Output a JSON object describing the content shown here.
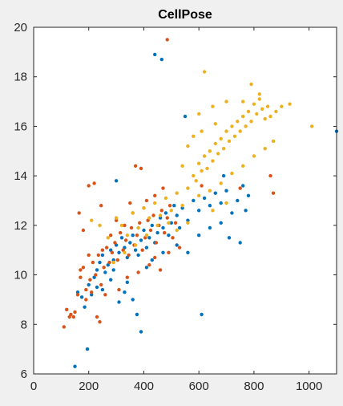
{
  "chart_data": {
    "type": "scatter",
    "title": "CellPose",
    "xlabel": "",
    "ylabel": "",
    "xlim": [
      0,
      1100
    ],
    "ylim": [
      6,
      20
    ],
    "xticks": [
      0,
      200,
      400,
      600,
      800,
      1000
    ],
    "yticks": [
      6,
      8,
      10,
      12,
      14,
      16,
      18,
      20
    ],
    "grid": false,
    "legend": "none",
    "colors": {
      "background": "#f0f0f0",
      "plot_area": "#ffffff",
      "axes": "#262626"
    },
    "series": [
      {
        "color": "#0072BD",
        "points": [
          [
            150,
            6.3
          ],
          [
            195,
            7.0
          ],
          [
            160,
            9.3
          ],
          [
            175,
            9.1
          ],
          [
            185,
            8.7
          ],
          [
            200,
            9.6
          ],
          [
            210,
            9.2
          ],
          [
            220,
            9.9
          ],
          [
            230,
            10.2
          ],
          [
            240,
            10.5
          ],
          [
            250,
            10.8
          ],
          [
            260,
            10.1
          ],
          [
            270,
            10.4
          ],
          [
            280,
            11.0
          ],
          [
            290,
            10.6
          ],
          [
            300,
            11.2
          ],
          [
            310,
            10.9
          ],
          [
            320,
            11.5
          ],
          [
            330,
            11.1
          ],
          [
            340,
            10.7
          ],
          [
            350,
            11.3
          ],
          [
            360,
            11.6
          ],
          [
            370,
            11.0
          ],
          [
            380,
            10.8
          ],
          [
            390,
            11.4
          ],
          [
            400,
            11.8
          ],
          [
            410,
            11.1
          ],
          [
            420,
            11.5
          ],
          [
            430,
            12.0
          ],
          [
            440,
            11.3
          ],
          [
            450,
            11.7
          ],
          [
            460,
            12.3
          ],
          [
            470,
            11.9
          ],
          [
            480,
            12.5
          ],
          [
            490,
            11.6
          ],
          [
            500,
            12.1
          ],
          [
            510,
            12.8
          ],
          [
            520,
            12.4
          ],
          [
            530,
            11.9
          ],
          [
            540,
            12.7
          ],
          [
            560,
            12.2
          ],
          [
            580,
            13.0
          ],
          [
            600,
            12.6
          ],
          [
            620,
            13.1
          ],
          [
            640,
            12.8
          ],
          [
            660,
            13.3
          ],
          [
            680,
            12.9
          ],
          [
            700,
            13.4
          ],
          [
            720,
            12.5
          ],
          [
            740,
            13.0
          ],
          [
            760,
            13.6
          ],
          [
            780,
            13.2
          ],
          [
            440,
            18.9
          ],
          [
            465,
            18.7
          ],
          [
            550,
            16.4
          ],
          [
            610,
            8.4
          ],
          [
            390,
            7.7
          ],
          [
            300,
            13.8
          ],
          [
            750,
            11.3
          ],
          [
            690,
            14.0
          ],
          [
            1100,
            15.8
          ],
          [
            375,
            8.4
          ],
          [
            330,
            9.3
          ],
          [
            310,
            8.9
          ],
          [
            280,
            9.8
          ],
          [
            340,
            9.7
          ],
          [
            360,
            9.0
          ],
          [
            410,
            10.3
          ],
          [
            430,
            10.6
          ],
          [
            470,
            10.9
          ],
          [
            520,
            11.2
          ],
          [
            560,
            10.9
          ],
          [
            600,
            11.6
          ],
          [
            640,
            11.9
          ],
          [
            680,
            12.1
          ],
          [
            710,
            11.5
          ],
          [
            770,
            12.6
          ],
          [
            290,
            10.2
          ],
          [
            250,
            9.4
          ],
          [
            230,
            9.5
          ]
        ]
      },
      {
        "color": "#D95319",
        "points": [
          [
            110,
            7.9
          ],
          [
            120,
            8.6
          ],
          [
            135,
            8.4
          ],
          [
            145,
            8.3
          ],
          [
            160,
            9.2
          ],
          [
            170,
            9.9
          ],
          [
            180,
            10.3
          ],
          [
            190,
            9.4
          ],
          [
            205,
            9.8
          ],
          [
            215,
            10.5
          ],
          [
            225,
            10.0
          ],
          [
            235,
            10.8
          ],
          [
            245,
            9.6
          ],
          [
            255,
            10.3
          ],
          [
            265,
            11.1
          ],
          [
            275,
            10.5
          ],
          [
            285,
            10.9
          ],
          [
            295,
            11.3
          ],
          [
            305,
            10.6
          ],
          [
            315,
            11.7
          ],
          [
            325,
            11.0
          ],
          [
            335,
            11.4
          ],
          [
            345,
            10.8
          ],
          [
            355,
            11.9
          ],
          [
            365,
            11.2
          ],
          [
            375,
            11.6
          ],
          [
            385,
            12.1
          ],
          [
            395,
            11.0
          ],
          [
            405,
            11.5
          ],
          [
            415,
            12.2
          ],
          [
            425,
            11.8
          ],
          [
            435,
            12.4
          ],
          [
            445,
            11.3
          ],
          [
            455,
            12.0
          ],
          [
            465,
            12.6
          ],
          [
            475,
            11.7
          ],
          [
            485,
            12.3
          ],
          [
            495,
            12.8
          ],
          [
            505,
            11.5
          ],
          [
            515,
            12.1
          ],
          [
            165,
            12.5
          ],
          [
            180,
            11.8
          ],
          [
            200,
            13.6
          ],
          [
            220,
            13.7
          ],
          [
            245,
            12.8
          ],
          [
            370,
            14.4
          ],
          [
            390,
            14.3
          ],
          [
            485,
            19.5
          ],
          [
            860,
            14.0
          ],
          [
            870,
            13.3
          ],
          [
            750,
            13.5
          ],
          [
            610,
            13.6
          ],
          [
            240,
            8.1
          ],
          [
            230,
            8.3
          ],
          [
            190,
            9.0
          ],
          [
            260,
            9.2
          ],
          [
            310,
            9.4
          ],
          [
            340,
            9.9
          ],
          [
            380,
            10.1
          ],
          [
            420,
            10.4
          ],
          [
            440,
            10.7
          ],
          [
            460,
            10.2
          ],
          [
            490,
            10.9
          ],
          [
            530,
            11.1
          ],
          [
            200,
            10.8
          ],
          [
            170,
            10.2
          ],
          [
            150,
            8.5
          ],
          [
            400,
            12.7
          ],
          [
            350,
            12.9
          ],
          [
            300,
            12.2
          ],
          [
            330,
            12.0
          ],
          [
            360,
            12.5
          ],
          [
            410,
            13.0
          ],
          [
            440,
            13.2
          ],
          [
            470,
            13.5
          ],
          [
            280,
            11.6
          ],
          [
            250,
            11.0
          ],
          [
            210,
            9.3
          ],
          [
            130,
            8.3
          ]
        ]
      },
      {
        "color": "#EDB120",
        "points": [
          [
            210,
            12.2
          ],
          [
            240,
            12.0
          ],
          [
            270,
            11.5
          ],
          [
            300,
            12.3
          ],
          [
            320,
            12.0
          ],
          [
            340,
            11.6
          ],
          [
            360,
            12.5
          ],
          [
            380,
            11.9
          ],
          [
            400,
            12.7
          ],
          [
            420,
            12.3
          ],
          [
            440,
            12.9
          ],
          [
            460,
            12.4
          ],
          [
            480,
            13.1
          ],
          [
            500,
            12.6
          ],
          [
            520,
            13.3
          ],
          [
            540,
            12.8
          ],
          [
            560,
            13.5
          ],
          [
            580,
            14.0
          ],
          [
            590,
            13.8
          ],
          [
            600,
            14.5
          ],
          [
            610,
            14.2
          ],
          [
            620,
            14.8
          ],
          [
            630,
            14.3
          ],
          [
            640,
            15.0
          ],
          [
            650,
            14.6
          ],
          [
            660,
            15.3
          ],
          [
            670,
            14.9
          ],
          [
            680,
            15.5
          ],
          [
            690,
            15.1
          ],
          [
            700,
            15.8
          ],
          [
            710,
            15.4
          ],
          [
            720,
            16.0
          ],
          [
            730,
            15.6
          ],
          [
            740,
            16.2
          ],
          [
            750,
            15.8
          ],
          [
            760,
            16.4
          ],
          [
            770,
            16.0
          ],
          [
            780,
            16.6
          ],
          [
            790,
            16.2
          ],
          [
            800,
            16.9
          ],
          [
            810,
            16.5
          ],
          [
            820,
            17.1
          ],
          [
            830,
            16.7
          ],
          [
            840,
            16.3
          ],
          [
            850,
            16.8
          ],
          [
            860,
            16.4
          ],
          [
            880,
            16.6
          ],
          [
            900,
            16.8
          ],
          [
            930,
            16.9
          ],
          [
            1010,
            16.0
          ],
          [
            620,
            18.2
          ],
          [
            790,
            17.7
          ],
          [
            820,
            17.3
          ],
          [
            760,
            17.0
          ],
          [
            700,
            17.0
          ],
          [
            650,
            16.8
          ],
          [
            600,
            16.5
          ],
          [
            580,
            15.6
          ],
          [
            560,
            15.2
          ],
          [
            540,
            14.4
          ],
          [
            600,
            13.2
          ],
          [
            640,
            13.4
          ],
          [
            680,
            13.7
          ],
          [
            720,
            14.1
          ],
          [
            760,
            14.4
          ],
          [
            800,
            14.8
          ],
          [
            840,
            15.1
          ],
          [
            870,
            15.4
          ],
          [
            650,
            12.6
          ],
          [
            700,
            12.9
          ],
          [
            560,
            12.1
          ],
          [
            520,
            11.8
          ],
          [
            490,
            12.1
          ],
          [
            450,
            12.0
          ],
          [
            410,
            11.6
          ],
          [
            370,
            11.2
          ],
          [
            330,
            10.9
          ],
          [
            290,
            10.5
          ],
          [
            610,
            15.8
          ],
          [
            660,
            16.1
          ]
        ]
      }
    ]
  }
}
